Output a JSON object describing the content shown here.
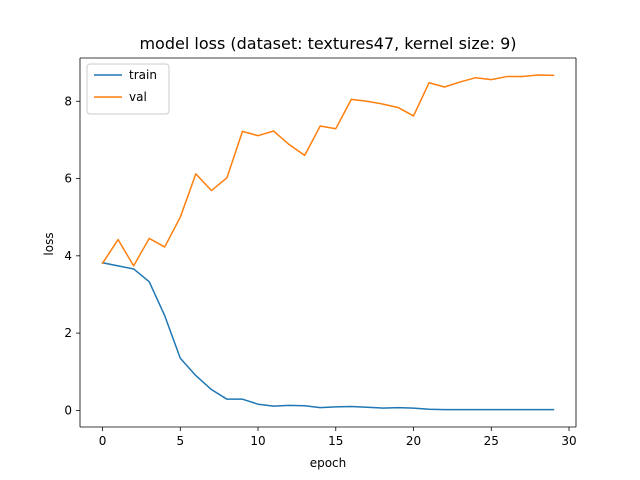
{
  "chart_data": {
    "type": "line",
    "title": "model loss (dataset: textures47, kernel size: 9)",
    "xlabel": "epoch",
    "ylabel": "loss",
    "xlim": [
      -1.45,
      30.45
    ],
    "ylim": [
      -0.43,
      9.12
    ],
    "xticks": [
      0,
      5,
      10,
      15,
      20,
      25,
      30
    ],
    "yticks": [
      0,
      2,
      4,
      6,
      8
    ],
    "grid": false,
    "legend_position": "upper-left",
    "x": [
      0,
      1,
      2,
      3,
      4,
      5,
      6,
      7,
      8,
      9,
      10,
      11,
      12,
      13,
      14,
      15,
      16,
      17,
      18,
      19,
      20,
      21,
      22,
      23,
      24,
      25,
      26,
      27,
      28,
      29
    ],
    "series": [
      {
        "name": "train",
        "color": "#1f77b4",
        "values": [
          3.82,
          3.74,
          3.66,
          3.33,
          2.45,
          1.35,
          0.9,
          0.54,
          0.29,
          0.29,
          0.16,
          0.11,
          0.13,
          0.12,
          0.07,
          0.09,
          0.1,
          0.08,
          0.06,
          0.07,
          0.06,
          0.03,
          0.02,
          0.02,
          0.02,
          0.02,
          0.02,
          0.02,
          0.02,
          0.02
        ]
      },
      {
        "name": "val",
        "color": "#ff7f0e",
        "values": [
          3.81,
          4.42,
          3.74,
          4.45,
          4.23,
          5.0,
          6.12,
          5.69,
          6.02,
          7.22,
          7.11,
          7.23,
          6.88,
          6.6,
          7.36,
          7.29,
          8.05,
          8.0,
          7.93,
          7.84,
          7.62,
          8.48,
          8.37,
          8.5,
          8.61,
          8.56,
          8.64,
          8.64,
          8.68,
          8.67
        ]
      }
    ]
  }
}
